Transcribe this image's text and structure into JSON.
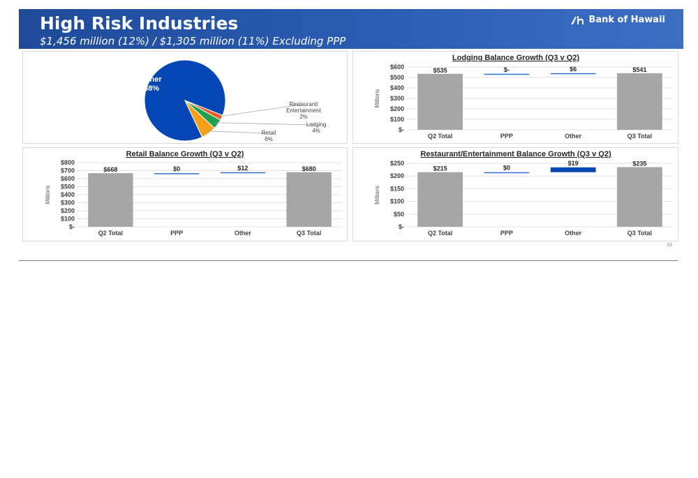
{
  "header": {
    "title": "High Risk Industries",
    "subtitle": "$1,456 million (12%) / $1,305 million (11%) Excluding PPP",
    "brand": "Bank of Hawaii",
    "brand_color": "#2a5db4"
  },
  "page_number": "19",
  "chart_data": [
    {
      "type": "pie",
      "categories": [
        "Other",
        "Restaurant/ Entertainment",
        "Lodging",
        "Retail"
      ],
      "values": [
        88,
        2,
        4,
        6
      ],
      "labels": [
        "88%",
        "2%",
        "4%",
        "6%"
      ],
      "colors": [
        "#0546b5",
        "#ef5a24",
        "#1ea04e",
        "#f5a01a"
      ]
    },
    {
      "type": "bar",
      "title": "Lodging Balance Growth (Q3 v Q2)",
      "ylabel": "Millions",
      "categories": [
        "Q2 Total",
        "PPP",
        "Other",
        "Q3 Total"
      ],
      "values": [
        535,
        0,
        6,
        541
      ],
      "data_labels": [
        "$535",
        "$-",
        "$6",
        "$541"
      ],
      "yticks": [
        "$-",
        "$100",
        "$200",
        "$300",
        "$400",
        "$500",
        "$600"
      ],
      "ylim": [
        0,
        600
      ]
    },
    {
      "type": "bar",
      "title": "Retail Balance Growth (Q3 v Q2)",
      "ylabel": "Millions",
      "categories": [
        "Q2 Total",
        "PPP",
        "Other",
        "Q3 Total"
      ],
      "values": [
        668,
        0,
        12,
        680
      ],
      "data_labels": [
        "$668",
        "$0",
        "$12",
        "$680"
      ],
      "yticks": [
        "$-",
        "$100",
        "$200",
        "$300",
        "$400",
        "$500",
        "$600",
        "$700",
        "$800"
      ],
      "ylim": [
        0,
        800
      ]
    },
    {
      "type": "bar",
      "title": "Restaurant/Entertainment Balance Growth (Q3 v Q2)",
      "ylabel": "Millions",
      "categories": [
        "Q2 Total",
        "PPP",
        "Other",
        "Q3 Total"
      ],
      "values": [
        215,
        0,
        19,
        235
      ],
      "data_labels": [
        "$215",
        "$0",
        "$19",
        "$235"
      ],
      "yticks": [
        "$-",
        "$50",
        "$100",
        "$150",
        "$200",
        "$250"
      ],
      "ylim": [
        0,
        250
      ]
    }
  ],
  "colors": {
    "total_bar": "#a6a6a6",
    "delta_bar": "#2e6fd0",
    "other_big": "#0546b5",
    "grid": "#d9d9d9"
  }
}
